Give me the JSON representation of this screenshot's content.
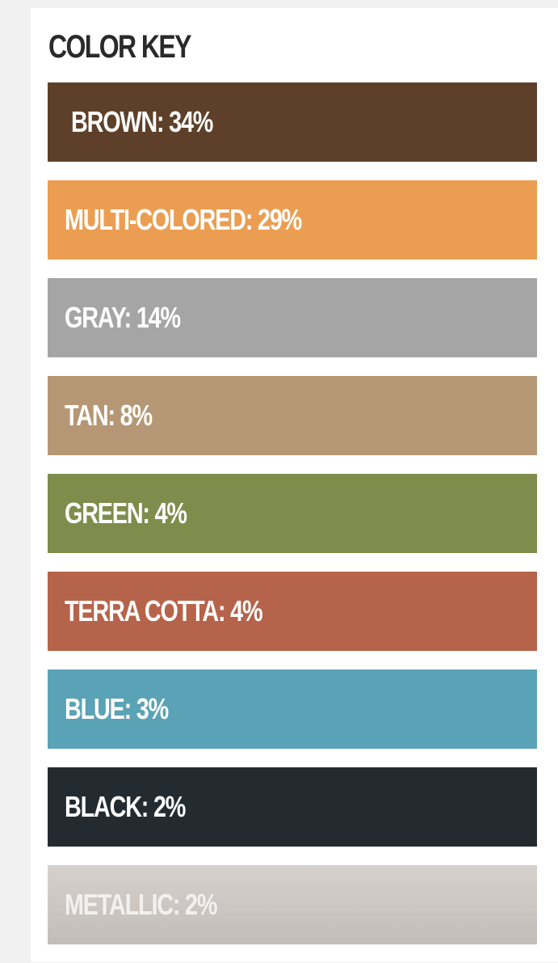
{
  "chart_data": {
    "type": "table",
    "title": "COLOR KEY",
    "categories": [
      "BROWN",
      "MULTI-COLORED",
      "GRAY",
      "TAN",
      "GREEN",
      "TERRA COTTA",
      "BLUE",
      "BLACK",
      "METALLIC"
    ],
    "values": [
      34,
      29,
      14,
      8,
      4,
      4,
      3,
      2,
      2
    ],
    "unit": "%",
    "colors": [
      "#5e402a",
      "#eb9e52",
      "#a5a5a5",
      "#b69775",
      "#7f8c4c",
      "#b5634a",
      "#5aa2b5",
      "#232b31",
      "#cbc6c2"
    ]
  },
  "key": {
    "title": "COLOR KEY",
    "items": [
      {
        "id": "brown",
        "label": "BROWN: 34%",
        "color": "#5e402a"
      },
      {
        "id": "multi-colored",
        "label": "MULTI-COLORED: 29%",
        "color": "#eb9e52"
      },
      {
        "id": "gray",
        "label": "GRAY: 14%",
        "color": "#a5a5a5"
      },
      {
        "id": "tan",
        "label": "TAN: 8%",
        "color": "#b69775"
      },
      {
        "id": "green",
        "label": "GREEN: 4%",
        "color": "#7f8c4c"
      },
      {
        "id": "terra-cotta",
        "label": "TERRA COTTA: 4%",
        "color": "#b5634a"
      },
      {
        "id": "blue",
        "label": "BLUE: 3%",
        "color": "#5aa2b5"
      },
      {
        "id": "black",
        "label": "BLACK: 2%",
        "color": "#232b31"
      },
      {
        "id": "metallic",
        "label": "METALLIC: 2%",
        "color": "#cbc6c2"
      }
    ]
  }
}
